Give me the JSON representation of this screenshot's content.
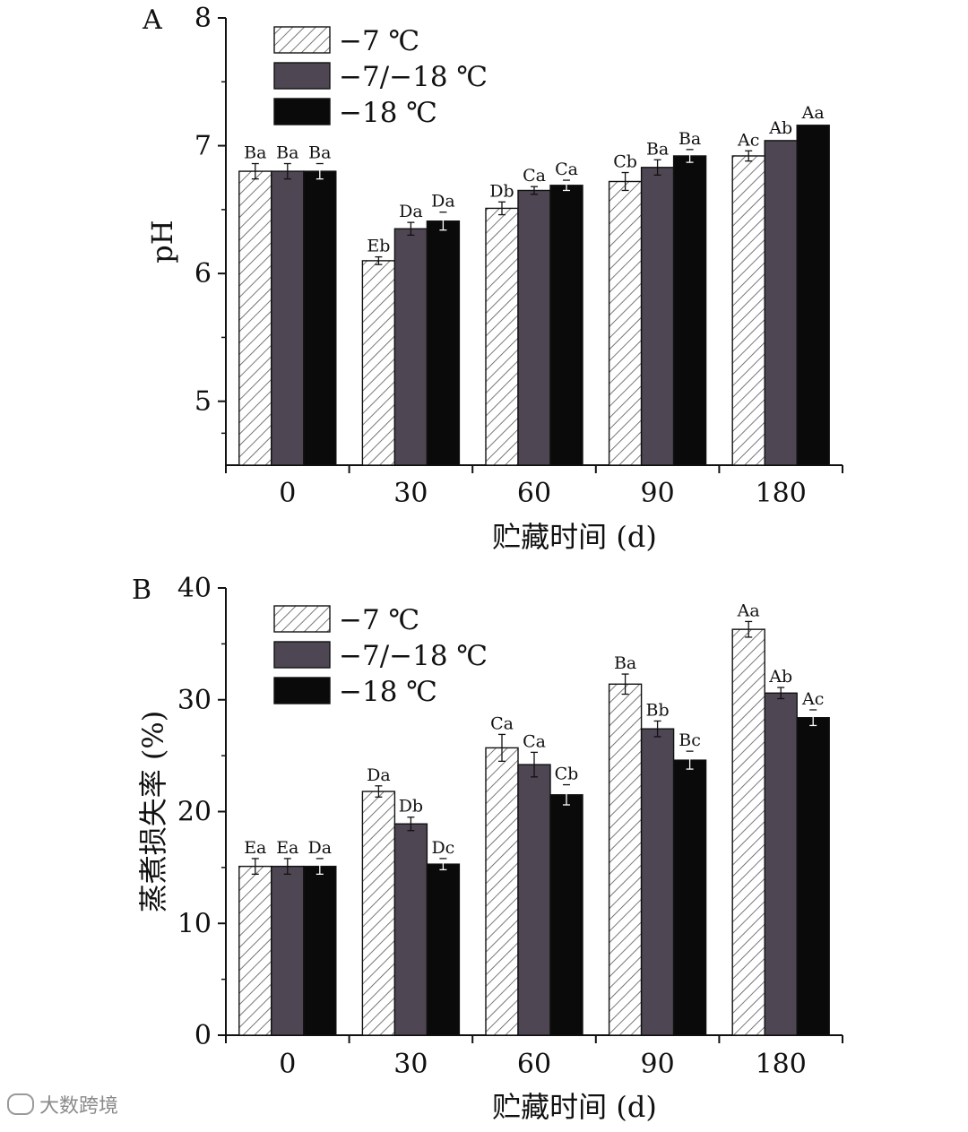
{
  "colors": {
    "-7": "#ffffff",
    "-7/-18": "#4e4652",
    "-18": "#0a0a0a",
    "axis": "#111111",
    "hatch": "#555555"
  },
  "legend": [
    "−7 ℃",
    "−7/−18 ℃",
    "−18 ℃"
  ],
  "watermark": "大数跨境",
  "chart_data": [
    {
      "panel": "A",
      "type": "bar",
      "categories": [
        "0",
        "30",
        "60",
        "90",
        "180"
      ],
      "xlabel": "贮藏时间 (d)",
      "ylabel": "pH",
      "ylim": [
        4.5,
        8
      ],
      "yticks": [
        "5",
        "6",
        "7",
        "8"
      ],
      "series": [
        {
          "name": "−7 ℃",
          "values": [
            6.8,
            6.1,
            6.51,
            6.72,
            6.92
          ],
          "errors": [
            0.06,
            0.03,
            0.05,
            0.07,
            0.04
          ],
          "labels": [
            "Ba",
            "Eb",
            "Db",
            "Cb",
            "Ac"
          ]
        },
        {
          "name": "−7/−18 ℃",
          "values": [
            6.8,
            6.35,
            6.65,
            6.83,
            7.04
          ],
          "errors": [
            0.06,
            0.05,
            0.03,
            0.06,
            0.0
          ],
          "labels": [
            "Ba",
            "Da",
            "Ca",
            "Ba",
            "Ab"
          ]
        },
        {
          "name": "−18 ℃",
          "values": [
            6.8,
            6.41,
            6.69,
            6.92,
            7.16
          ],
          "errors": [
            0.06,
            0.07,
            0.04,
            0.05,
            0.0
          ],
          "labels": [
            "Ba",
            "Da",
            "Ca",
            "Ba",
            "Aa"
          ]
        }
      ]
    },
    {
      "panel": "B",
      "type": "bar",
      "categories": [
        "0",
        "30",
        "60",
        "90",
        "180"
      ],
      "xlabel": "贮藏时间 (d)",
      "ylabel": "蒸煮损失率 (%)",
      "ylim": [
        0,
        40
      ],
      "yticks": [
        "0",
        "10",
        "20",
        "30",
        "40"
      ],
      "series": [
        {
          "name": "−7 ℃",
          "values": [
            15.1,
            21.8,
            25.7,
            31.4,
            36.3
          ],
          "errors": [
            0.7,
            0.5,
            1.2,
            0.9,
            0.7
          ],
          "labels": [
            "Ea",
            "Da",
            "Ca",
            "Ba",
            "Aa"
          ]
        },
        {
          "name": "−7/−18 ℃",
          "values": [
            15.1,
            18.9,
            24.2,
            27.4,
            30.6
          ],
          "errors": [
            0.7,
            0.6,
            1.1,
            0.7,
            0.5
          ],
          "labels": [
            "Ea",
            "Db",
            "Ca",
            "Bb",
            "Ab"
          ]
        },
        {
          "name": "−18 ℃",
          "values": [
            15.1,
            15.3,
            21.5,
            24.6,
            28.4
          ],
          "errors": [
            0.7,
            0.5,
            0.9,
            0.8,
            0.7
          ],
          "labels": [
            "Da",
            "Dc",
            "Cb",
            "Bc",
            "Ac"
          ]
        }
      ]
    }
  ]
}
